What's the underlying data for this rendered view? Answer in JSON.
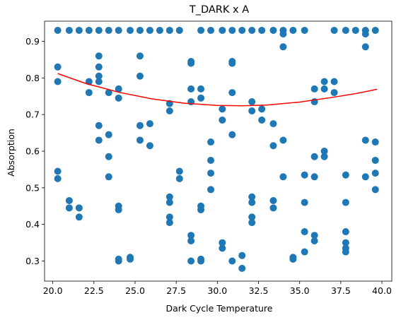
{
  "chart_data": {
    "type": "scatter",
    "title": "T_DARK x A",
    "xlabel": "Dark Cycle Temperature",
    "ylabel": "Absorption",
    "xlim": [
      19.5,
      40.6
    ],
    "ylim": [
      0.245,
      0.955
    ],
    "xticks": [
      20.0,
      22.5,
      25.0,
      27.5,
      30.0,
      32.5,
      35.0,
      37.5,
      40.0
    ],
    "xtick_labels": [
      "20.0",
      "22.5",
      "25.0",
      "27.5",
      "30.0",
      "32.5",
      "35.0",
      "37.5",
      "40.0"
    ],
    "yticks": [
      0.3,
      0.4,
      0.5,
      0.6,
      0.7,
      0.8,
      0.9
    ],
    "ytick_labels": [
      "0.3",
      "0.4",
      "0.5",
      "0.6",
      "0.7",
      "0.8",
      "0.9"
    ],
    "grid": false,
    "legend": "none",
    "colors": {
      "points": "#1f77b4",
      "fit": "#ff0000"
    },
    "series": [
      {
        "kind": "scatter",
        "points": [
          [
            20.3,
            0.93
          ],
          [
            20.3,
            0.83
          ],
          [
            20.3,
            0.79
          ],
          [
            20.3,
            0.545
          ],
          [
            20.3,
            0.525
          ],
          [
            21.0,
            0.93
          ],
          [
            21.0,
            0.465
          ],
          [
            21.0,
            0.445
          ],
          [
            21.6,
            0.93
          ],
          [
            21.6,
            0.445
          ],
          [
            21.6,
            0.42
          ],
          [
            22.2,
            0.93
          ],
          [
            22.2,
            0.79
          ],
          [
            22.2,
            0.76
          ],
          [
            22.8,
            0.93
          ],
          [
            22.8,
            0.86
          ],
          [
            22.8,
            0.83
          ],
          [
            22.8,
            0.805
          ],
          [
            22.8,
            0.79
          ],
          [
            22.8,
            0.67
          ],
          [
            22.8,
            0.63
          ],
          [
            23.4,
            0.93
          ],
          [
            23.4,
            0.76
          ],
          [
            23.4,
            0.645
          ],
          [
            23.4,
            0.585
          ],
          [
            23.4,
            0.53
          ],
          [
            24.0,
            0.93
          ],
          [
            24.0,
            0.77
          ],
          [
            24.0,
            0.745
          ],
          [
            24.0,
            0.45
          ],
          [
            24.0,
            0.44
          ],
          [
            24.0,
            0.305
          ],
          [
            24.0,
            0.3
          ],
          [
            24.7,
            0.93
          ],
          [
            24.7,
            0.31
          ],
          [
            24.7,
            0.305
          ],
          [
            25.3,
            0.93
          ],
          [
            25.3,
            0.86
          ],
          [
            25.3,
            0.805
          ],
          [
            25.3,
            0.67
          ],
          [
            25.3,
            0.63
          ],
          [
            25.9,
            0.93
          ],
          [
            25.9,
            0.675
          ],
          [
            25.9,
            0.615
          ],
          [
            26.5,
            0.93
          ],
          [
            27.1,
            0.93
          ],
          [
            27.1,
            0.73
          ],
          [
            27.1,
            0.71
          ],
          [
            27.1,
            0.475
          ],
          [
            27.1,
            0.46
          ],
          [
            27.1,
            0.42
          ],
          [
            27.1,
            0.405
          ],
          [
            27.7,
            0.93
          ],
          [
            27.7,
            0.545
          ],
          [
            27.7,
            0.525
          ],
          [
            28.4,
            0.845
          ],
          [
            28.4,
            0.84
          ],
          [
            28.4,
            0.77
          ],
          [
            28.4,
            0.735
          ],
          [
            28.4,
            0.37
          ],
          [
            28.4,
            0.355
          ],
          [
            28.4,
            0.3
          ],
          [
            29.0,
            0.93
          ],
          [
            29.0,
            0.77
          ],
          [
            29.0,
            0.745
          ],
          [
            29.0,
            0.45
          ],
          [
            29.0,
            0.44
          ],
          [
            29.0,
            0.305
          ],
          [
            29.0,
            0.3
          ],
          [
            29.6,
            0.93
          ],
          [
            29.6,
            0.625
          ],
          [
            29.6,
            0.575
          ],
          [
            29.6,
            0.54
          ],
          [
            29.6,
            0.495
          ],
          [
            30.3,
            0.93
          ],
          [
            30.3,
            0.715
          ],
          [
            30.3,
            0.685
          ],
          [
            30.3,
            0.35
          ],
          [
            30.3,
            0.335
          ],
          [
            30.9,
            0.93
          ],
          [
            30.9,
            0.845
          ],
          [
            30.9,
            0.84
          ],
          [
            30.9,
            0.76
          ],
          [
            30.9,
            0.645
          ],
          [
            30.9,
            0.3
          ],
          [
            31.5,
            0.93
          ],
          [
            31.5,
            0.315
          ],
          [
            31.5,
            0.28
          ],
          [
            32.1,
            0.93
          ],
          [
            32.1,
            0.735
          ],
          [
            32.1,
            0.71
          ],
          [
            32.1,
            0.475
          ],
          [
            32.1,
            0.46
          ],
          [
            32.1,
            0.42
          ],
          [
            32.1,
            0.405
          ],
          [
            32.7,
            0.93
          ],
          [
            32.7,
            0.715
          ],
          [
            32.7,
            0.685
          ],
          [
            33.4,
            0.93
          ],
          [
            33.4,
            0.675
          ],
          [
            33.4,
            0.615
          ],
          [
            33.4,
            0.465
          ],
          [
            33.4,
            0.445
          ],
          [
            34.0,
            0.93
          ],
          [
            34.0,
            0.92
          ],
          [
            34.0,
            0.885
          ],
          [
            34.0,
            0.63
          ],
          [
            34.0,
            0.53
          ],
          [
            34.6,
            0.93
          ],
          [
            34.6,
            0.31
          ],
          [
            34.6,
            0.305
          ],
          [
            35.3,
            0.93
          ],
          [
            35.3,
            0.535
          ],
          [
            35.3,
            0.46
          ],
          [
            35.3,
            0.38
          ],
          [
            35.3,
            0.325
          ],
          [
            35.9,
            0.77
          ],
          [
            35.9,
            0.735
          ],
          [
            35.9,
            0.585
          ],
          [
            35.9,
            0.53
          ],
          [
            35.9,
            0.37
          ],
          [
            35.9,
            0.355
          ],
          [
            36.5,
            0.79
          ],
          [
            36.5,
            0.77
          ],
          [
            36.5,
            0.6
          ],
          [
            36.5,
            0.585
          ],
          [
            37.1,
            0.93
          ],
          [
            37.1,
            0.79
          ],
          [
            37.1,
            0.76
          ],
          [
            37.8,
            0.93
          ],
          [
            37.8,
            0.535
          ],
          [
            37.8,
            0.46
          ],
          [
            37.8,
            0.38
          ],
          [
            37.8,
            0.35
          ],
          [
            37.8,
            0.335
          ],
          [
            37.8,
            0.325
          ],
          [
            38.4,
            0.93
          ],
          [
            39.0,
            0.93
          ],
          [
            39.0,
            0.92
          ],
          [
            39.0,
            0.885
          ],
          [
            39.0,
            0.63
          ],
          [
            39.0,
            0.53
          ],
          [
            39.6,
            0.93
          ],
          [
            39.6,
            0.625
          ],
          [
            39.6,
            0.575
          ],
          [
            39.6,
            0.54
          ],
          [
            39.6,
            0.495
          ]
        ]
      },
      {
        "kind": "fit-line",
        "points": [
          [
            20.3,
            0.812
          ],
          [
            22.0,
            0.785
          ],
          [
            24.0,
            0.761
          ],
          [
            26.0,
            0.743
          ],
          [
            28.0,
            0.731
          ],
          [
            30.0,
            0.725
          ],
          [
            31.5,
            0.724
          ],
          [
            33.0,
            0.726
          ],
          [
            35.0,
            0.734
          ],
          [
            37.0,
            0.747
          ],
          [
            38.5,
            0.758
          ],
          [
            39.7,
            0.769
          ]
        ]
      }
    ]
  }
}
